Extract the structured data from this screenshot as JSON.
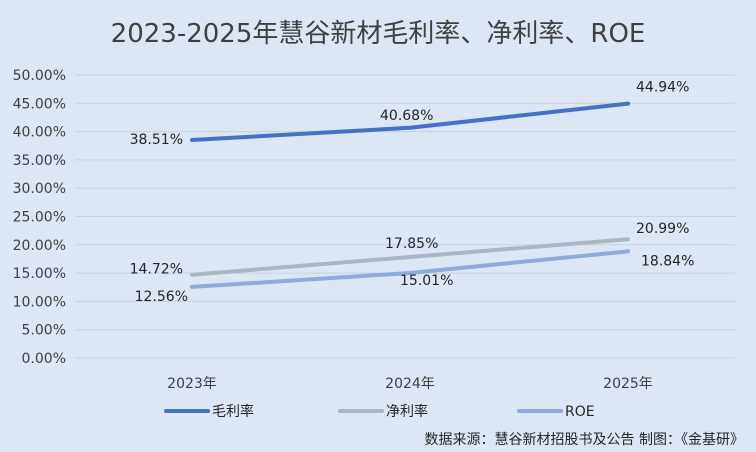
{
  "chart_data": {
    "type": "line",
    "title": "2023-2025年慧谷新材毛利率、净利率、ROE",
    "xlabel": "",
    "ylabel": "",
    "categories": [
      "2023年",
      "2024年",
      "2025年"
    ],
    "ylim": [
      0,
      50
    ],
    "yticks": [
      "0.00%",
      "5.00%",
      "10.00%",
      "15.00%",
      "20.00%",
      "25.00%",
      "30.00%",
      "35.00%",
      "40.00%",
      "45.00%",
      "50.00%"
    ],
    "grid": true,
    "legend": "bottom",
    "series": [
      {
        "name": "毛利率",
        "values": [
          38.51,
          40.68,
          44.94
        ],
        "labels": [
          "38.51%",
          "40.68%",
          "44.94%"
        ],
        "color": "#4472c4"
      },
      {
        "name": "净利率",
        "values": [
          14.72,
          17.85,
          20.99
        ],
        "labels": [
          "14.72%",
          "17.85%",
          "20.99%"
        ],
        "color": "#aab5c6"
      },
      {
        "name": "ROE",
        "values": [
          12.56,
          15.01,
          18.84
        ],
        "labels": [
          "12.56%",
          "15.01%",
          "18.84%"
        ],
        "color": "#8faadc"
      }
    ],
    "source": "数据来源：慧谷新材招股书及公告   制图：《金基研》"
  }
}
